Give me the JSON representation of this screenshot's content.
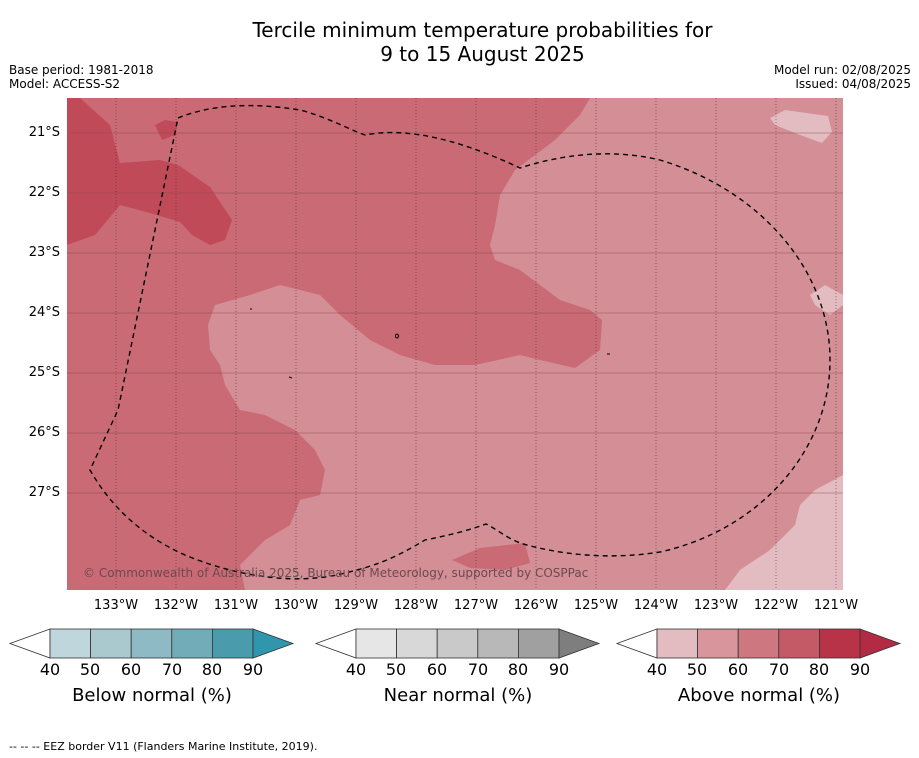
{
  "title": {
    "line1": "Tercile minimum temperature probabilities for",
    "line2": "9 to 15 August 2025"
  },
  "meta_left": {
    "base_period": "Base period: 1981-2018",
    "model": "Model: ACCESS-S2"
  },
  "meta_right": {
    "model_run": "Model run: 02/08/2025",
    "issued": "Issued: 04/08/2025"
  },
  "map": {
    "lat_labels": [
      "21°S",
      "22°S",
      "23°S",
      "24°S",
      "25°S",
      "26°S",
      "27°S"
    ],
    "lon_labels": [
      "133°W",
      "132°W",
      "131°W",
      "130°W",
      "129°W",
      "128°W",
      "127°W",
      "126°W",
      "125°W",
      "124°W",
      "123°W",
      "122°W",
      "121°W"
    ],
    "copyright": "© Commonwealth of Australia 2025, Bureau of Meteorology, supported by COSPPac",
    "colors": {
      "above_50_60": "#d48e96",
      "above_60_70": "#c96a74",
      "above_70_80": "#c04a58",
      "above_40_50": "#e2bcc0",
      "eez_line": "#000000"
    }
  },
  "colorbars": [
    {
      "title": "Below normal (%)",
      "ticks": [
        "40",
        "50",
        "60",
        "70",
        "80",
        "90"
      ],
      "colors": [
        "#bed6dc",
        "#a9c9cf",
        "#8dbac4",
        "#72acb9",
        "#4a9cac",
        "#2f96ad"
      ]
    },
    {
      "title": "Near normal (%)",
      "ticks": [
        "40",
        "50",
        "60",
        "70",
        "80",
        "90"
      ],
      "colors": [
        "#e6e6e6",
        "#d8d8d8",
        "#c9c9c9",
        "#b8b8b8",
        "#a0a0a0",
        "#7e7e7e"
      ]
    },
    {
      "title": "Above normal (%)",
      "ticks": [
        "40",
        "50",
        "60",
        "70",
        "80",
        "90"
      ],
      "colors": [
        "#e2bcc0",
        "#d8959c",
        "#cd7880",
        "#c55a67",
        "#b83348",
        "#b32a44"
      ]
    }
  ],
  "footnote": "--  --  -- EEZ border V11 (Flanders Marine Institute, 2019)."
}
